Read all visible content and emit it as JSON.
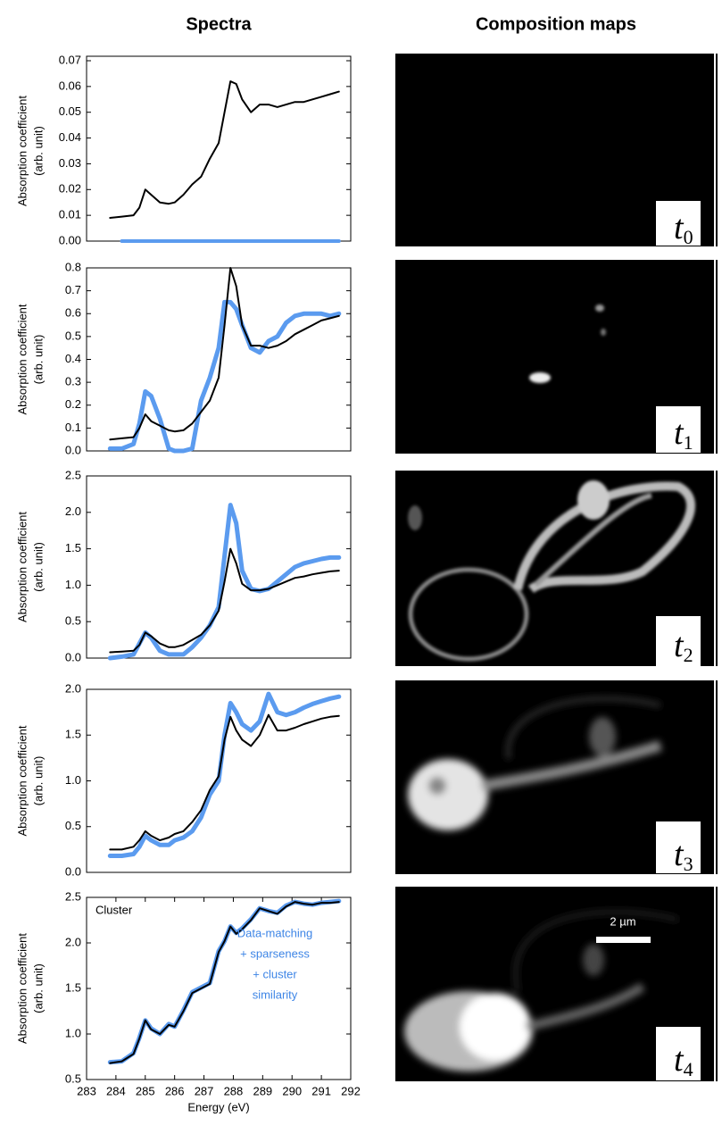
{
  "headers": {
    "spectra": "Spectra",
    "maps": "Composition maps"
  },
  "maps": [
    {
      "symbol": "t",
      "index": "0"
    },
    {
      "symbol": "t",
      "index": "1"
    },
    {
      "symbol": "t",
      "index": "2"
    },
    {
      "symbol": "t",
      "index": "3"
    },
    {
      "symbol": "t",
      "index": "4"
    }
  ],
  "scale_bar": "2 µm",
  "chart_data": [
    {
      "type": "line",
      "ylabel": [
        "Absorption coefficient",
        "(arb. unit)"
      ],
      "x": [
        283.8,
        284.2,
        284.6,
        284.8,
        285.0,
        285.2,
        285.5,
        285.8,
        286.0,
        286.3,
        286.6,
        286.9,
        287.2,
        287.5,
        287.7,
        287.9,
        288.1,
        288.3,
        288.6,
        288.9,
        289.2,
        289.5,
        289.8,
        290.1,
        290.4,
        290.7,
        291.0,
        291.3,
        291.6
      ],
      "xlim": [
        283,
        292
      ],
      "ylim": [
        0,
        0.07
      ],
      "yticks": [
        {
          "value": 0,
          "label": "0.00"
        },
        0.01,
        0.02,
        0.03,
        0.04,
        0.05,
        0.06,
        0.07
      ],
      "series": [
        {
          "color": "#5b9bef",
          "width": 4,
          "values": [
            null,
            0,
            0,
            0,
            0,
            0,
            0,
            0,
            0,
            0,
            0,
            0,
            0,
            0,
            0,
            0,
            0,
            0,
            0,
            0,
            0,
            0,
            0,
            0,
            0,
            0,
            0,
            0,
            0
          ]
        },
        {
          "color": "#000000",
          "width": 2,
          "values": [
            0.009,
            0.0095,
            0.01,
            0.013,
            0.02,
            0.018,
            0.015,
            0.0145,
            0.015,
            0.018,
            0.022,
            0.025,
            0.032,
            0.038,
            0.05,
            0.062,
            0.061,
            0.055,
            0.05,
            0.053,
            0.053,
            0.052,
            0.053,
            0.054,
            0.054,
            0.055,
            0.056,
            0.057,
            0.058
          ]
        }
      ]
    },
    {
      "type": "line",
      "ylabel": [
        "Absorption coefficient",
        "(arb. unit)"
      ],
      "x": [
        283.8,
        284.2,
        284.6,
        284.8,
        285.0,
        285.2,
        285.5,
        285.8,
        286.0,
        286.3,
        286.6,
        286.9,
        287.2,
        287.5,
        287.7,
        287.9,
        288.1,
        288.3,
        288.6,
        288.9,
        289.2,
        289.5,
        289.8,
        290.1,
        290.4,
        290.7,
        291.0,
        291.3,
        291.6
      ],
      "xlim": [
        283,
        292
      ],
      "ylim": [
        0,
        0.8
      ],
      "yticks": [
        {
          "value": 0,
          "label": "0.0"
        },
        0.1,
        0.2,
        0.3,
        0.4,
        0.5,
        0.6,
        0.7,
        0.8
      ],
      "series": [
        {
          "color": "#5b9bef",
          "width": 5,
          "values": [
            0.01,
            0.01,
            0.03,
            0.12,
            0.26,
            0.24,
            0.14,
            0.01,
            0,
            0,
            0.01,
            0.22,
            0.32,
            0.45,
            0.65,
            0.65,
            0.62,
            0.55,
            0.45,
            0.43,
            0.48,
            0.5,
            0.56,
            0.59,
            0.6,
            0.6,
            0.6,
            0.59,
            0.6
          ]
        },
        {
          "color": "#000000",
          "width": 2,
          "values": [
            0.05,
            0.055,
            0.06,
            0.1,
            0.16,
            0.13,
            0.11,
            0.09,
            0.085,
            0.09,
            0.12,
            0.17,
            0.22,
            0.32,
            0.55,
            0.8,
            0.72,
            0.55,
            0.46,
            0.46,
            0.45,
            0.46,
            0.48,
            0.51,
            0.53,
            0.55,
            0.57,
            0.58,
            0.59
          ]
        }
      ]
    },
    {
      "type": "line",
      "ylabel": [
        "Absorption coefficient",
        "(arb. unit)"
      ],
      "x": [
        283.8,
        284.2,
        284.6,
        284.8,
        285.0,
        285.2,
        285.5,
        285.8,
        286.0,
        286.3,
        286.6,
        286.9,
        287.2,
        287.5,
        287.7,
        287.9,
        288.1,
        288.3,
        288.6,
        288.9,
        289.2,
        289.5,
        289.8,
        290.1,
        290.4,
        290.7,
        291.0,
        291.3,
        291.6
      ],
      "xlim": [
        283,
        292
      ],
      "ylim": [
        0,
        2.5
      ],
      "yticks": [
        {
          "value": 0,
          "label": "0.0"
        },
        0.5,
        {
          "value": 1,
          "label": "1.0"
        },
        1.5,
        {
          "value": 2,
          "label": "2.0"
        },
        2.5
      ],
      "series": [
        {
          "color": "#5b9bef",
          "width": 5,
          "values": [
            0,
            0.02,
            0.05,
            0.2,
            0.35,
            0.28,
            0.1,
            0.05,
            0.05,
            0.05,
            0.15,
            0.28,
            0.45,
            0.7,
            1.4,
            2.1,
            1.85,
            1.2,
            0.95,
            0.92,
            0.95,
            1.05,
            1.15,
            1.25,
            1.3,
            1.33,
            1.36,
            1.38,
            1.38
          ]
        },
        {
          "color": "#000000",
          "width": 2,
          "values": [
            0.08,
            0.09,
            0.1,
            0.18,
            0.35,
            0.3,
            0.2,
            0.15,
            0.15,
            0.18,
            0.25,
            0.32,
            0.45,
            0.65,
            1.05,
            1.5,
            1.3,
            1.02,
            0.93,
            0.93,
            0.95,
            1.0,
            1.05,
            1.1,
            1.12,
            1.15,
            1.17,
            1.19,
            1.2
          ]
        }
      ]
    },
    {
      "type": "line",
      "ylabel": [
        "Absorption coefficient",
        "(arb. unit)"
      ],
      "x": [
        283.8,
        284.2,
        284.6,
        284.8,
        285.0,
        285.2,
        285.5,
        285.8,
        286.0,
        286.3,
        286.6,
        286.9,
        287.2,
        287.5,
        287.7,
        287.9,
        288.1,
        288.3,
        288.6,
        288.9,
        289.2,
        289.5,
        289.8,
        290.1,
        290.4,
        290.7,
        291.0,
        291.3,
        291.6
      ],
      "xlim": [
        283,
        292
      ],
      "ylim": [
        0,
        2.0
      ],
      "yticks": [
        {
          "value": 0,
          "label": "0.0"
        },
        0.5,
        {
          "value": 1,
          "label": "1.0"
        },
        1.5,
        {
          "value": 2,
          "label": "2.0"
        }
      ],
      "series": [
        {
          "color": "#5b9bef",
          "width": 5,
          "values": [
            0.18,
            0.18,
            0.2,
            0.28,
            0.4,
            0.35,
            0.3,
            0.3,
            0.35,
            0.38,
            0.45,
            0.6,
            0.85,
            1.0,
            1.5,
            1.85,
            1.75,
            1.62,
            1.55,
            1.65,
            1.95,
            1.75,
            1.72,
            1.75,
            1.8,
            1.84,
            1.87,
            1.9,
            1.92
          ]
        },
        {
          "color": "#000000",
          "width": 2,
          "values": [
            0.25,
            0.25,
            0.28,
            0.35,
            0.45,
            0.4,
            0.35,
            0.38,
            0.42,
            0.45,
            0.55,
            0.68,
            0.9,
            1.05,
            1.45,
            1.7,
            1.55,
            1.45,
            1.38,
            1.5,
            1.72,
            1.55,
            1.55,
            1.58,
            1.62,
            1.65,
            1.68,
            1.7,
            1.71
          ]
        }
      ]
    },
    {
      "type": "line",
      "ylabel": [
        "Absorption coefficient",
        "(arb. unit)"
      ],
      "xlabel": "Energy (eV)",
      "annotation": "Cluster",
      "note": [
        "Data-matching",
        "+ sparseness",
        "+ cluster",
        "similarity"
      ],
      "note_color": "#3d85e6",
      "x": [
        283.8,
        284.2,
        284.6,
        284.8,
        285.0,
        285.2,
        285.5,
        285.8,
        286.0,
        286.3,
        286.6,
        286.9,
        287.2,
        287.5,
        287.7,
        287.9,
        288.1,
        288.3,
        288.6,
        288.9,
        289.2,
        289.5,
        289.8,
        290.1,
        290.4,
        290.7,
        291.0,
        291.3,
        291.6
      ],
      "xlim": [
        283,
        292
      ],
      "ylim": [
        0.5,
        2.5
      ],
      "xticks": [
        283,
        284,
        285,
        286,
        287,
        288,
        289,
        290,
        291,
        292
      ],
      "yticks": [
        0.5,
        {
          "value": 1,
          "label": "1.0"
        },
        1.5,
        {
          "value": 2,
          "label": "2.0"
        },
        2.5
      ],
      "series": [
        {
          "color": "#5b9bef",
          "width": 5,
          "values": [
            0.69,
            0.7,
            0.79,
            0.96,
            1.15,
            1.06,
            1.0,
            1.11,
            1.08,
            1.26,
            1.46,
            1.51,
            1.56,
            1.91,
            2.02,
            2.18,
            2.11,
            2.16,
            2.26,
            2.38,
            2.35,
            2.33,
            2.41,
            2.45,
            2.43,
            2.42,
            2.44,
            2.45,
            2.46
          ]
        },
        {
          "color": "#000000",
          "width": 2,
          "values": [
            0.68,
            0.7,
            0.78,
            0.95,
            1.15,
            1.05,
            1.0,
            1.1,
            1.08,
            1.25,
            1.45,
            1.5,
            1.55,
            1.9,
            2.02,
            2.18,
            2.1,
            2.15,
            2.25,
            2.38,
            2.35,
            2.32,
            2.4,
            2.45,
            2.43,
            2.42,
            2.44,
            2.44,
            2.45
          ]
        }
      ]
    }
  ]
}
